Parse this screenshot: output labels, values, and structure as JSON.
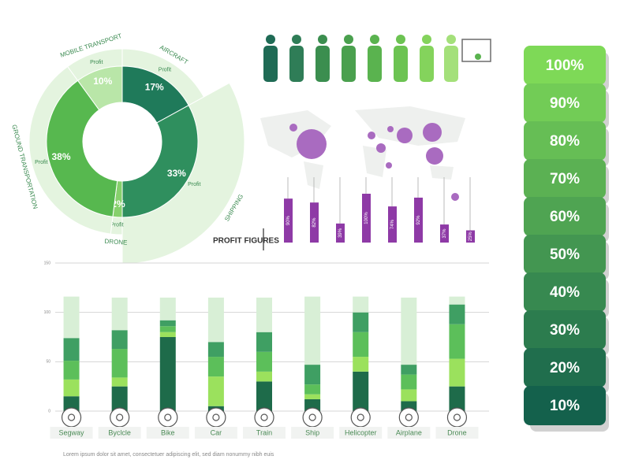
{
  "chart_data": [
    {
      "type": "sunburst",
      "categories": [
        "MOBILE TRANSPORT",
        "AIRCRAFT",
        "SHIPPING",
        "DRONE",
        "GROUND TRANSPORTATION"
      ],
      "sublabel": "Profit",
      "values": [
        10,
        17,
        33,
        2,
        38
      ],
      "value_labels": [
        "10%",
        "17%",
        "33%",
        "2%",
        "38%"
      ],
      "colors": [
        "#b9e6a8",
        "#1f7a5a",
        "#2f8f5e",
        "#86d06c",
        "#57b84f"
      ]
    },
    {
      "type": "bar",
      "title": "PROFIT FIGURES",
      "values": [
        90,
        82,
        39,
        100,
        74,
        92,
        37,
        25
      ],
      "value_labels": [
        "90%",
        "82%",
        "39%",
        "100%",
        "74%",
        "92%",
        "37%",
        "25%"
      ],
      "color": "#8e3aa6"
    },
    {
      "type": "stacked-bar",
      "categories": [
        "Segway",
        "Byclcle",
        "Bike",
        "Car",
        "Train",
        "Ship",
        "Helicopter",
        "Airplane",
        "Drone"
      ],
      "ylim": [
        0,
        150
      ],
      "yticks": [
        0,
        50,
        100,
        150
      ],
      "grid": true,
      "series": [
        {
          "color": "#1e6b4a",
          "values": [
            15,
            25,
            75,
            5,
            30,
            12,
            40,
            10,
            25
          ]
        },
        {
          "color": "#9be15d",
          "values": [
            17,
            9,
            5,
            30,
            10,
            5,
            15,
            12,
            28
          ]
        },
        {
          "color": "#5cbf5a",
          "values": [
            19,
            29,
            6,
            20,
            20,
            10,
            25,
            15,
            35
          ]
        },
        {
          "color": "#3f9f63",
          "values": [
            23,
            19,
            6,
            15,
            20,
            20,
            20,
            10,
            20
          ]
        },
        {
          "color": "#d8efd6",
          "values": [
            42,
            33,
            23,
            45,
            35,
            69,
            16,
            68,
            8
          ]
        }
      ],
      "caption": "Lorem ipsum dolor sit amet, consectetuer adipiscing elit, sed diam nonummy nibh euis"
    },
    {
      "type": "levels",
      "values": [
        100,
        90,
        80,
        70,
        60,
        50,
        40,
        30,
        20,
        10
      ],
      "value_labels": [
        "100%",
        "90%",
        "80%",
        "70%",
        "60%",
        "50%",
        "40%",
        "30%",
        "20%",
        "10%"
      ]
    }
  ]
}
